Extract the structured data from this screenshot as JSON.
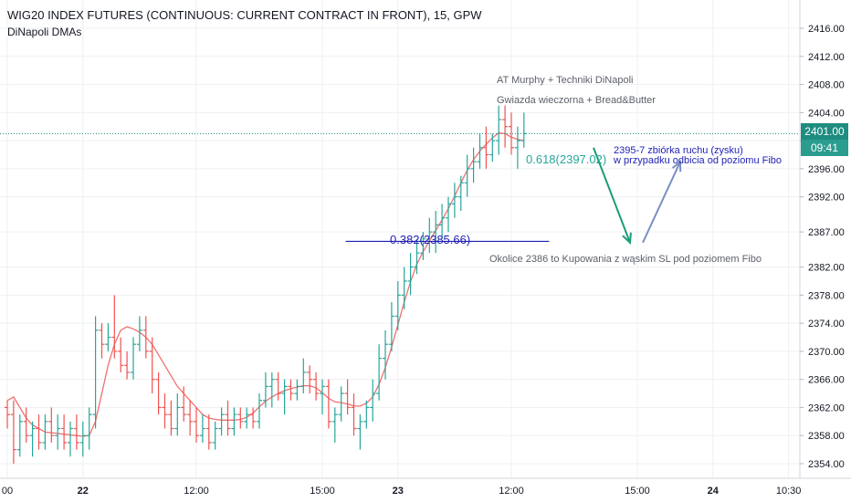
{
  "header": {
    "title": "WIG20 INDEX FUTURES (CONTINUOUS: CURRENT CONTRACT IN FRONT), 15, GPW",
    "indicator": "DiNapoli DMAs"
  },
  "price_tag": {
    "value": "2401.00",
    "countdown": "09:41"
  },
  "annotations": {
    "line1": "AT Murphy + Techniki DiNapoli",
    "line2": "Gwiazda wieczorna + Bread&Butter",
    "target_line1": "2395-7 zbiórka ruchu (zysku)",
    "target_line2": "w przypadku odbicia od poziomu Fibo",
    "buy_note": "Okolice 2386 to Kupowania z wąskim SL pod poziomem Fibo",
    "fib_382": "0.382(2385.66)",
    "fib_618": "0.618(2397.02)"
  },
  "colors": {
    "up": "#26a69a",
    "down": "#ef5350",
    "dma": "#f07070",
    "fib_382": "#1f1fb4",
    "fib_618": "#26a69a",
    "down_arrow": "#1a9c78",
    "up_arrow": "#7b8fc4",
    "price_line": "#1e8c80",
    "price_box": "#1e8c80",
    "countdown_box": "#2a9d8f"
  },
  "chart_data": {
    "type": "ohlc",
    "interval": "15",
    "y_axis_side": "right",
    "ylim": [
      2352.5,
      2420.0
    ],
    "y_ticks": [
      "2416.00",
      "2412.00",
      "2408.00",
      "2404.00",
      "2400.00",
      "2396.00",
      "2392.00",
      "2387.00",
      "2382.00",
      "2378.00",
      "2374.00",
      "2370.00",
      "2366.00",
      "2362.00",
      "2358.00",
      "2354.00"
    ],
    "y_tick_values": [
      2416,
      2412,
      2408,
      2404,
      2400,
      2396,
      2392,
      2387,
      2382,
      2378,
      2374,
      2370,
      2366,
      2362,
      2358,
      2354
    ],
    "x_ticks": [
      "00",
      "22",
      "12:00",
      "15:00",
      "23",
      "12:00",
      "15:00",
      "24",
      "10:30"
    ],
    "x_tick_bar_index": [
      0,
      12,
      30,
      50,
      62,
      80,
      100,
      112,
      124
    ],
    "current_price": 2401.0,
    "bars": [
      {
        "o": 2362,
        "h": 2363,
        "l": 2359,
        "c": 2361
      },
      {
        "o": 2361,
        "h": 2363,
        "l": 2354,
        "c": 2356
      },
      {
        "o": 2356,
        "h": 2361,
        "l": 2355,
        "c": 2360
      },
      {
        "o": 2360,
        "h": 2362,
        "l": 2357,
        "c": 2358
      },
      {
        "o": 2358,
        "h": 2360,
        "l": 2355,
        "c": 2359
      },
      {
        "o": 2359,
        "h": 2361,
        "l": 2356,
        "c": 2357
      },
      {
        "o": 2357,
        "h": 2361,
        "l": 2356,
        "c": 2360
      },
      {
        "o": 2360,
        "h": 2362,
        "l": 2357,
        "c": 2358
      },
      {
        "o": 2358,
        "h": 2361,
        "l": 2356,
        "c": 2359
      },
      {
        "o": 2359,
        "h": 2361,
        "l": 2356,
        "c": 2357
      },
      {
        "o": 2357,
        "h": 2360,
        "l": 2355,
        "c": 2359
      },
      {
        "o": 2359,
        "h": 2361,
        "l": 2356,
        "c": 2357
      },
      {
        "o": 2357,
        "h": 2360,
        "l": 2355,
        "c": 2358
      },
      {
        "o": 2358,
        "h": 2362,
        "l": 2356,
        "c": 2361
      },
      {
        "o": 2361,
        "h": 2375,
        "l": 2359,
        "c": 2373
      },
      {
        "o": 2373,
        "h": 2374,
        "l": 2369,
        "c": 2371
      },
      {
        "o": 2371,
        "h": 2374,
        "l": 2370,
        "c": 2372
      },
      {
        "o": 2372,
        "h": 2378,
        "l": 2369,
        "c": 2370
      },
      {
        "o": 2370,
        "h": 2372,
        "l": 2367,
        "c": 2368
      },
      {
        "o": 2368,
        "h": 2370,
        "l": 2366,
        "c": 2367
      },
      {
        "o": 2367,
        "h": 2372,
        "l": 2366,
        "c": 2371
      },
      {
        "o": 2371,
        "h": 2375,
        "l": 2370,
        "c": 2373
      },
      {
        "o": 2373,
        "h": 2375,
        "l": 2369,
        "c": 2370
      },
      {
        "o": 2370,
        "h": 2372,
        "l": 2364,
        "c": 2366
      },
      {
        "o": 2366,
        "h": 2367,
        "l": 2361,
        "c": 2362
      },
      {
        "o": 2362,
        "h": 2364,
        "l": 2359,
        "c": 2361
      },
      {
        "o": 2361,
        "h": 2363,
        "l": 2358,
        "c": 2359
      },
      {
        "o": 2359,
        "h": 2364,
        "l": 2358,
        "c": 2362
      },
      {
        "o": 2362,
        "h": 2365,
        "l": 2360,
        "c": 2361
      },
      {
        "o": 2361,
        "h": 2363,
        "l": 2358,
        "c": 2360
      },
      {
        "o": 2360,
        "h": 2362,
        "l": 2357,
        "c": 2358
      },
      {
        "o": 2358,
        "h": 2361,
        "l": 2357,
        "c": 2359
      },
      {
        "o": 2359,
        "h": 2361,
        "l": 2356,
        "c": 2357
      },
      {
        "o": 2357,
        "h": 2360,
        "l": 2356,
        "c": 2359
      },
      {
        "o": 2359,
        "h": 2362,
        "l": 2358,
        "c": 2361
      },
      {
        "o": 2361,
        "h": 2363,
        "l": 2358,
        "c": 2359
      },
      {
        "o": 2359,
        "h": 2362,
        "l": 2358,
        "c": 2361
      },
      {
        "o": 2361,
        "h": 2362,
        "l": 2359,
        "c": 2360
      },
      {
        "o": 2360,
        "h": 2362,
        "l": 2359,
        "c": 2361
      },
      {
        "o": 2361,
        "h": 2362,
        "l": 2359,
        "c": 2360
      },
      {
        "o": 2360,
        "h": 2364,
        "l": 2359,
        "c": 2363
      },
      {
        "o": 2363,
        "h": 2367,
        "l": 2362,
        "c": 2365
      },
      {
        "o": 2365,
        "h": 2367,
        "l": 2362,
        "c": 2366
      },
      {
        "o": 2366,
        "h": 2367,
        "l": 2363,
        "c": 2364
      },
      {
        "o": 2364,
        "h": 2366,
        "l": 2361,
        "c": 2365
      },
      {
        "o": 2365,
        "h": 2366,
        "l": 2363,
        "c": 2364
      },
      {
        "o": 2364,
        "h": 2366,
        "l": 2363,
        "c": 2365
      },
      {
        "o": 2365,
        "h": 2369,
        "l": 2364,
        "c": 2367
      },
      {
        "o": 2367,
        "h": 2368,
        "l": 2364,
        "c": 2366
      },
      {
        "o": 2366,
        "h": 2367,
        "l": 2363,
        "c": 2364
      },
      {
        "o": 2364,
        "h": 2366,
        "l": 2361,
        "c": 2365
      },
      {
        "o": 2365,
        "h": 2366,
        "l": 2359,
        "c": 2360
      },
      {
        "o": 2360,
        "h": 2362,
        "l": 2357,
        "c": 2361
      },
      {
        "o": 2361,
        "h": 2365,
        "l": 2360,
        "c": 2364
      },
      {
        "o": 2364,
        "h": 2366,
        "l": 2361,
        "c": 2362
      },
      {
        "o": 2362,
        "h": 2364,
        "l": 2358,
        "c": 2359
      },
      {
        "o": 2359,
        "h": 2361,
        "l": 2356,
        "c": 2360
      },
      {
        "o": 2360,
        "h": 2363,
        "l": 2359,
        "c": 2362
      },
      {
        "o": 2362,
        "h": 2366,
        "l": 2360,
        "c": 2364
      },
      {
        "o": 2364,
        "h": 2371,
        "l": 2363,
        "c": 2369
      },
      {
        "o": 2369,
        "h": 2373,
        "l": 2366,
        "c": 2371
      },
      {
        "o": 2371,
        "h": 2377,
        "l": 2370,
        "c": 2375
      },
      {
        "o": 2375,
        "h": 2380,
        "l": 2373,
        "c": 2378
      },
      {
        "o": 2378,
        "h": 2382,
        "l": 2376,
        "c": 2380
      },
      {
        "o": 2380,
        "h": 2384,
        "l": 2378,
        "c": 2382
      },
      {
        "o": 2382,
        "h": 2386,
        "l": 2381,
        "c": 2384
      },
      {
        "o": 2384,
        "h": 2387,
        "l": 2383,
        "c": 2386
      },
      {
        "o": 2386,
        "h": 2389,
        "l": 2384,
        "c": 2387
      },
      {
        "o": 2387,
        "h": 2390,
        "l": 2384,
        "c": 2388
      },
      {
        "o": 2388,
        "h": 2391,
        "l": 2386,
        "c": 2389
      },
      {
        "o": 2389,
        "h": 2392,
        "l": 2387,
        "c": 2391
      },
      {
        "o": 2391,
        "h": 2394,
        "l": 2389,
        "c": 2392
      },
      {
        "o": 2392,
        "h": 2395,
        "l": 2390,
        "c": 2394
      },
      {
        "o": 2394,
        "h": 2398,
        "l": 2392,
        "c": 2396
      },
      {
        "o": 2396,
        "h": 2399,
        "l": 2394,
        "c": 2397
      },
      {
        "o": 2397,
        "h": 2401,
        "l": 2396,
        "c": 2399
      },
      {
        "o": 2399,
        "h": 2402,
        "l": 2396,
        "c": 2398
      },
      {
        "o": 2398,
        "h": 2401,
        "l": 2397,
        "c": 2400
      },
      {
        "o": 2400,
        "h": 2405,
        "l": 2398,
        "c": 2403
      },
      {
        "o": 2403,
        "h": 2405,
        "l": 2399,
        "c": 2402
      },
      {
        "o": 2402,
        "h": 2404,
        "l": 2398,
        "c": 2399
      },
      {
        "o": 2399,
        "h": 2402,
        "l": 2396,
        "c": 2400
      },
      {
        "o": 2400,
        "h": 2404,
        "l": 2399,
        "c": 2401
      }
    ],
    "x_index_offset": 0,
    "dma_values": [
      2363,
      2363.5,
      2362,
      2360.5,
      2359.5,
      2359,
      2358.5,
      2358.4,
      2358.3,
      2358.2,
      2358.1,
      2358,
      2357.9,
      2358,
      2360,
      2364,
      2368,
      2371,
      2373,
      2373.5,
      2373.2,
      2372.7,
      2372,
      2371,
      2369.5,
      2368,
      2366.5,
      2365,
      2364,
      2363,
      2362,
      2361,
      2360.5,
      2360.3,
      2360.2,
      2360.2,
      2360.2,
      2360.3,
      2360.6,
      2361.2,
      2362.1,
      2362.9,
      2363.5,
      2364,
      2364.4,
      2364.7,
      2364.9,
      2365.1,
      2365.1,
      2364.8,
      2364.1,
      2363.3,
      2362.8,
      2362.7,
      2362.5,
      2362.2,
      2362.2,
      2362.6,
      2363.5,
      2365.3,
      2367.7,
      2370.6,
      2373.8,
      2377,
      2379.9,
      2382.4,
      2384.2,
      2385.7,
      2387.2,
      2388.7,
      2390.3,
      2392.1,
      2394,
      2395.8,
      2397.3,
      2398.5,
      2399.5,
      2400.4,
      2401.1,
      2401,
      2400.5,
      2400.2,
      2400
    ],
    "fib_levels": [
      {
        "ratio": 0.382,
        "price": 2385.66
      },
      {
        "ratio": 0.618,
        "price": 2397.02
      }
    ],
    "projection_arrows": [
      {
        "from_price": 2401.0,
        "to_price": 2386.0
      },
      {
        "from_price": 2386.0,
        "to_price": 2397.0
      }
    ]
  }
}
